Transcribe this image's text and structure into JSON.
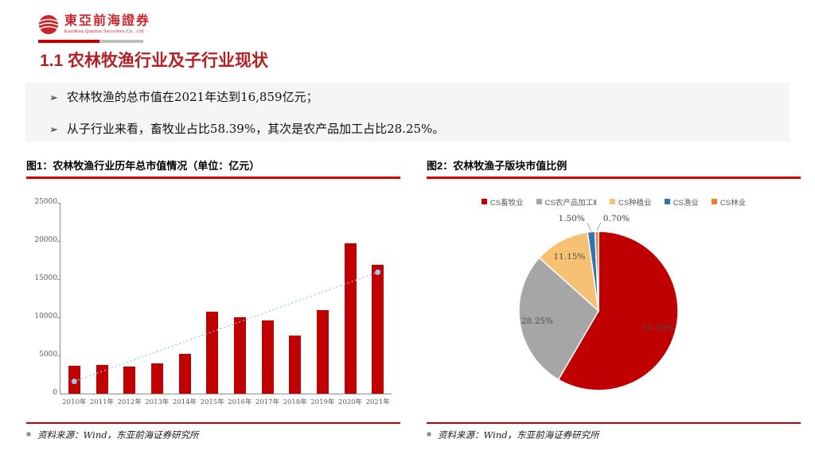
{
  "header": {
    "logo_cn": "東亞前海證券",
    "logo_en": "EastAsia Qianhai Securities Co., Ltd",
    "title": "1.1 农林牧渔行业及子行业现状"
  },
  "bullets": {
    "marker": "➢",
    "items": [
      "农林牧渔的总市值在2021年达到16,859亿元；",
      "从子行业来看，畜牧业占比58.39%，其次是农产品加工占比28.25%。"
    ]
  },
  "figures": {
    "fig1_title": "图1：农林牧渔行业历年总市值情况（单位：亿元）",
    "fig2_title": "图2：农林牧渔子版块市值比例",
    "source_bullet": "■",
    "source_text": "资料来源：Wind，东亚前海证券研究所"
  },
  "colors": {
    "brand_red": "#C00000",
    "bar_red": "#C00000",
    "trend_blue": "#9DC3E6",
    "axis_gray": "#8C8C8C",
    "label_gray": "#595959"
  },
  "chart_data": [
    {
      "type": "bar",
      "title": "农林牧渔行业历年总市值情况",
      "unit": "亿元",
      "categories": [
        "2010年",
        "2011年",
        "2012年",
        "2013年",
        "2014年",
        "2015年",
        "2016年",
        "2017年",
        "2018年",
        "2019年",
        "2020年",
        "2021年"
      ],
      "values": [
        3600,
        3650,
        3450,
        3950,
        5150,
        10650,
        9950,
        9550,
        7550,
        10850,
        19600,
        16859
      ],
      "ylim": [
        0,
        25000
      ],
      "yticks": [
        0,
        5000,
        10000,
        15000,
        20000,
        25000
      ],
      "grid": false,
      "bar_color": "#C00000",
      "trendline": {
        "style": "dotted",
        "color": "#9DC3E6",
        "start_value": 1600,
        "end_value": 15900,
        "markers": true
      }
    },
    {
      "type": "pie",
      "title": "农林牧渔子版块市值比例",
      "legend_position": "top",
      "start_angle_deg": -90,
      "direction": "clockwise",
      "slices": [
        {
          "label": "CS畜牧业",
          "value": 58.39,
          "text": "58.39%",
          "color": "#C00000",
          "label_pos": "inside"
        },
        {
          "label": "CS农产品加工Ⅱ",
          "value": 28.25,
          "text": "28.25%",
          "color": "#A6A6A6",
          "label_pos": "inside"
        },
        {
          "label": "CS种植业",
          "value": 11.15,
          "text": "11.15%",
          "color": "#F7C173",
          "label_pos": "inside"
        },
        {
          "label": "CS渔业",
          "value": 1.5,
          "text": "1.50%",
          "color": "#2E75B6",
          "label_pos": "outside",
          "label_dir": "left"
        },
        {
          "label": "CS林业",
          "value": 0.7,
          "text": "0.70%",
          "color": "#ED7D31",
          "label_pos": "outside",
          "label_dir": "right"
        }
      ]
    }
  ]
}
